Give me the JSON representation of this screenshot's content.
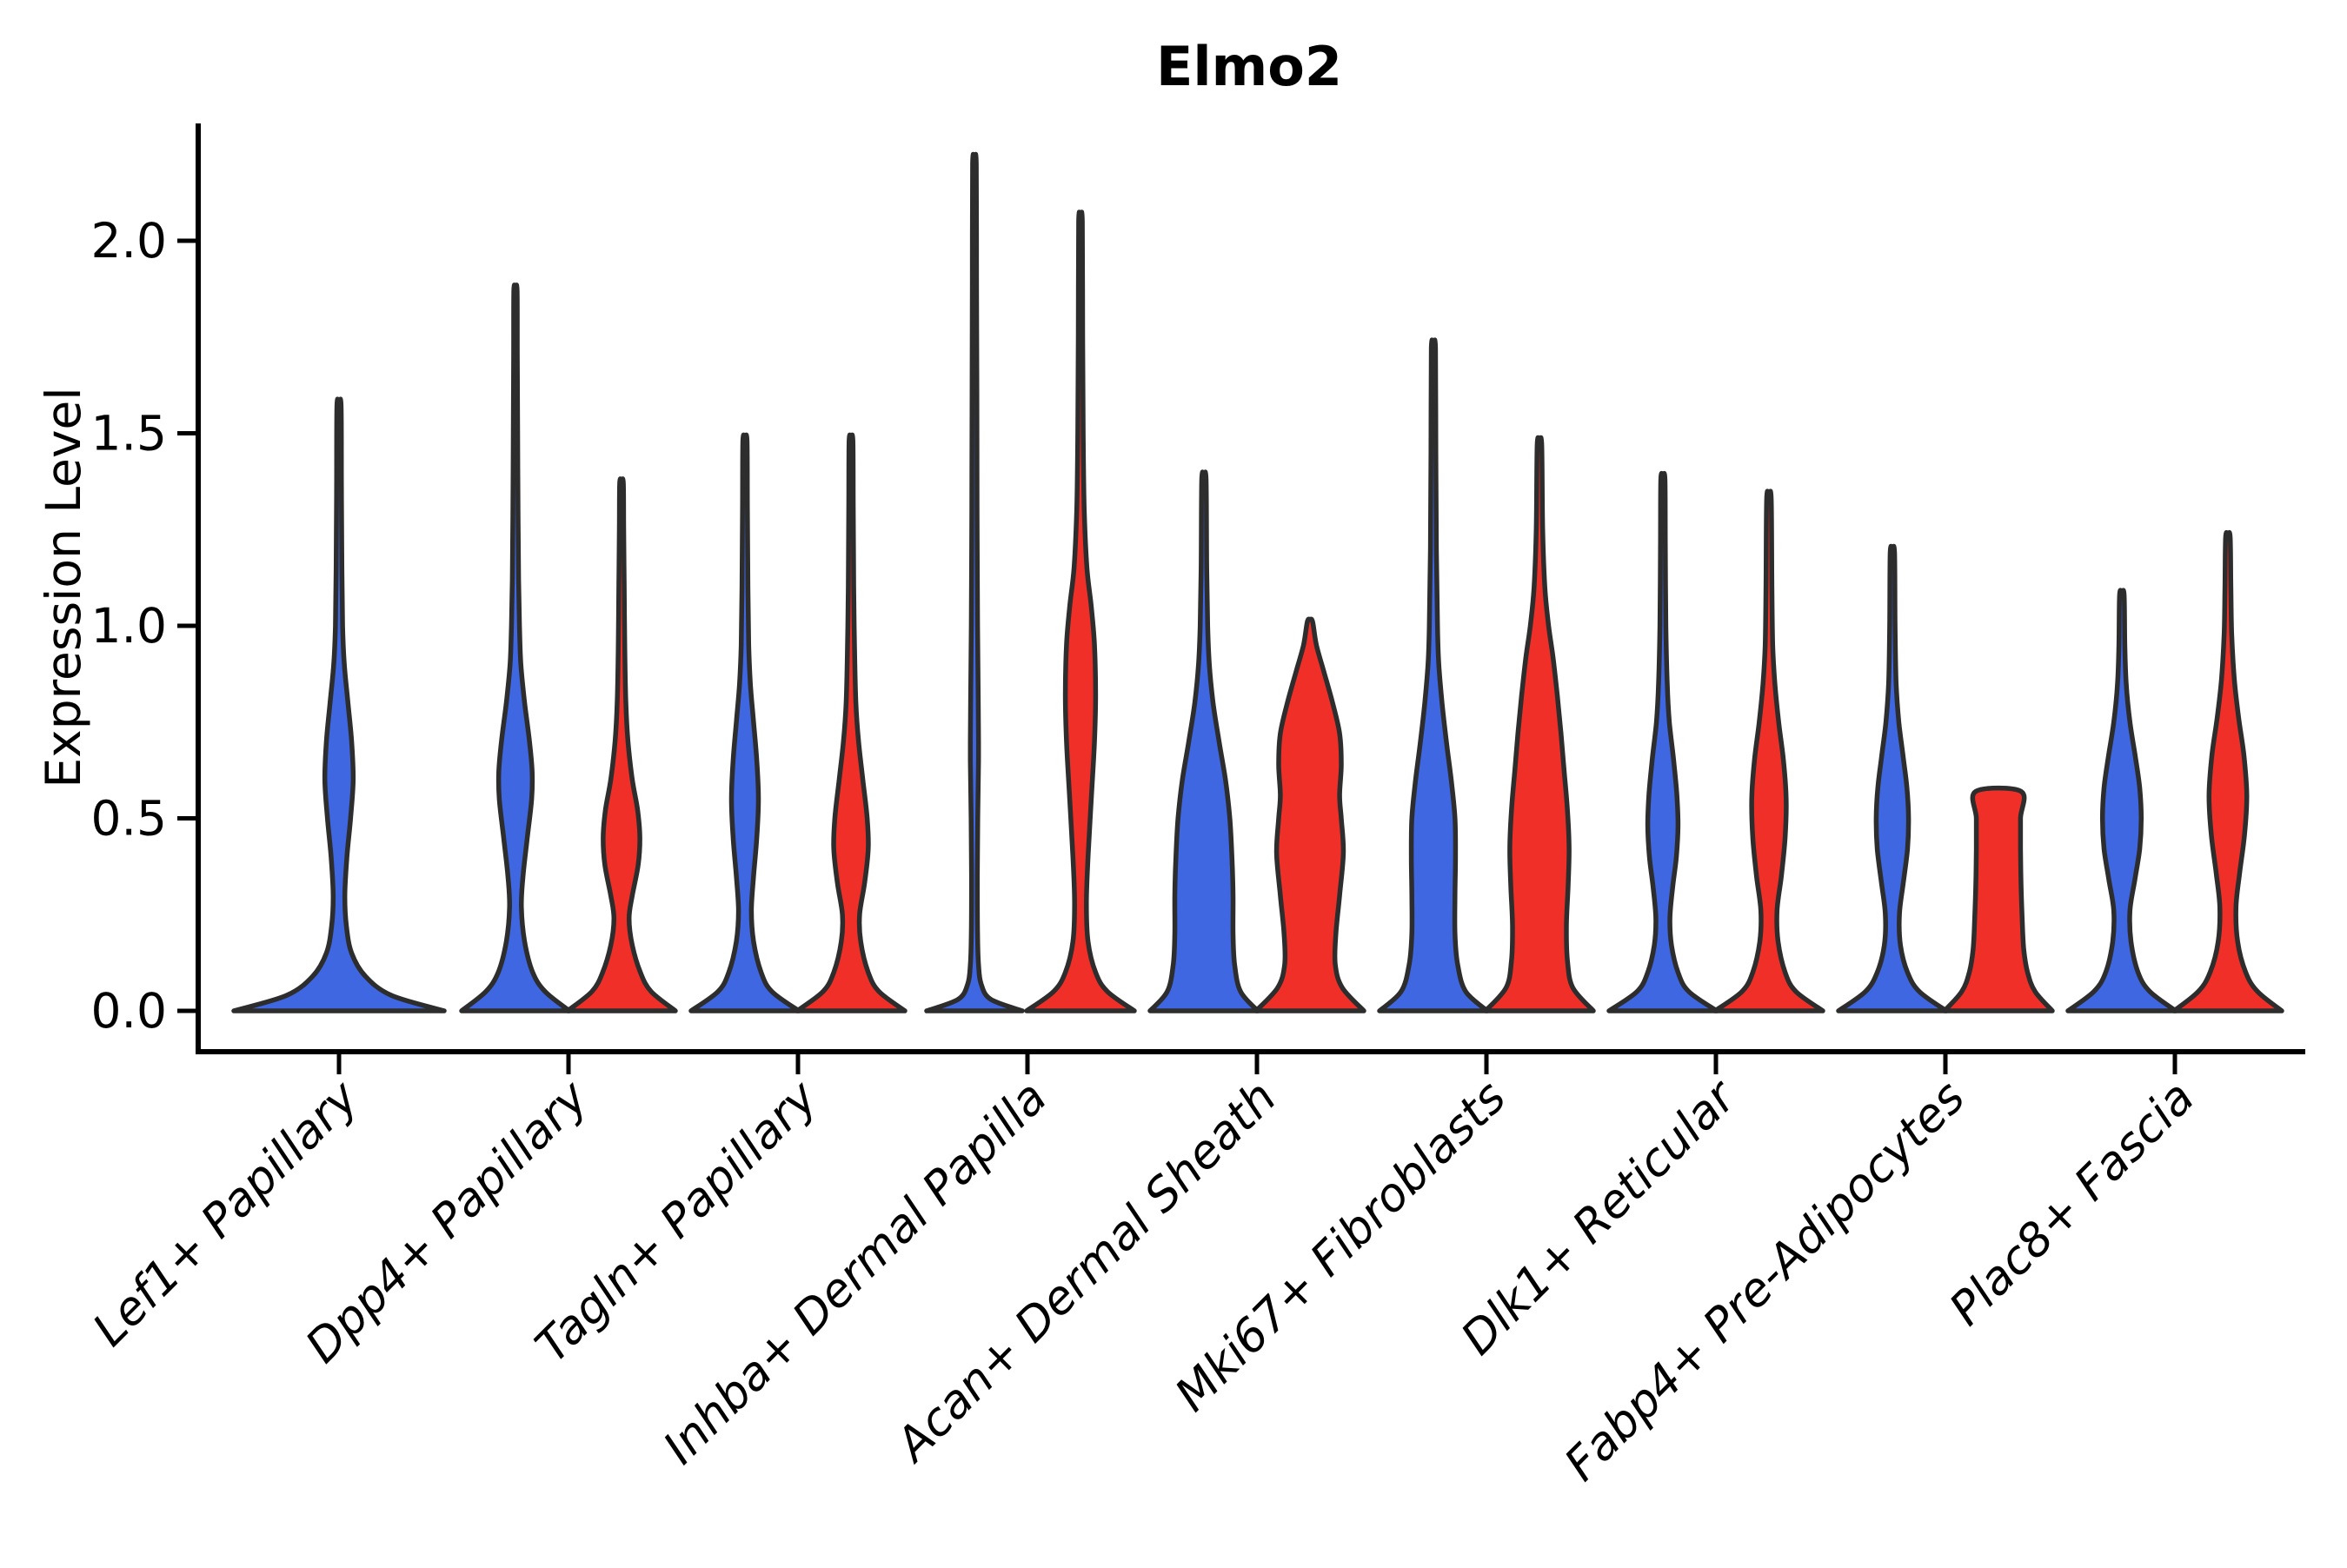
{
  "title": "Elmo2",
  "ylabel": "Expression Level",
  "chart_data": {
    "type": "violin",
    "title": "Elmo2",
    "xlabel": "",
    "ylabel": "Expression Level",
    "ylim": [
      -0.11,
      2.31
    ],
    "yticks": [
      0.0,
      0.5,
      1.0,
      1.5,
      2.0
    ],
    "ytick_labels": [
      "0.0",
      "0.5",
      "1.0",
      "1.5",
      "2.0"
    ],
    "grid": "off",
    "legend": "none",
    "categories": [
      "Lef1+ Papillary",
      "Dpp4+ Papillary",
      "Tagln+ Papillary",
      "Inhba+ Dermal Papilla",
      "Acan+ Dermal Sheath",
      "Mki67+ Fibroblasts",
      "Dlk1+ Reticular",
      "Fabp4+ Pre-Adipocytes",
      "Plac8+ Fascia"
    ],
    "series": [
      {
        "name": "blue",
        "color": "#3E67E1"
      },
      {
        "name": "red",
        "color": "#F03028"
      }
    ],
    "colors": {
      "blue_fill": "#3E67E1",
      "red_fill": "#F03028",
      "outline": "#2D2D2D",
      "axis": "#000000",
      "text": "#000000",
      "background": "#FFFFFF"
    },
    "violins": [
      {
        "category_index": 0,
        "category": "Lef1+ Papillary",
        "series": "blue",
        "max": 1.57,
        "offset": 0,
        "half_width": 121,
        "flat_top": false,
        "profile": [
          [
            0,
            1
          ],
          [
            0.04,
            0.5
          ],
          [
            0.09,
            0.25
          ],
          [
            0.15,
            0.12
          ],
          [
            0.22,
            0.07
          ],
          [
            0.3,
            0.055
          ],
          [
            0.4,
            0.075
          ],
          [
            0.5,
            0.11
          ],
          [
            0.6,
            0.135
          ],
          [
            0.7,
            0.12
          ],
          [
            0.8,
            0.085
          ],
          [
            0.9,
            0.05
          ],
          [
            1,
            0.034
          ],
          [
            1.15,
            0.027
          ],
          [
            1.35,
            0.023
          ],
          [
            1.57,
            0.02
          ]
        ]
      },
      {
        "category_index": 1,
        "category": "Dpp4+ Papillary",
        "series": "blue",
        "max": 1.87,
        "offset": -61,
        "half_width": 62,
        "flat_top": false,
        "profile": [
          [
            0,
            1
          ],
          [
            0.05,
            0.55
          ],
          [
            0.1,
            0.32
          ],
          [
            0.18,
            0.17
          ],
          [
            0.27,
            0.11
          ],
          [
            0.35,
            0.14
          ],
          [
            0.45,
            0.22
          ],
          [
            0.55,
            0.3
          ],
          [
            0.62,
            0.31
          ],
          [
            0.7,
            0.26
          ],
          [
            0.8,
            0.17
          ],
          [
            0.9,
            0.1
          ],
          [
            1,
            0.075
          ],
          [
            1.12,
            0.058
          ],
          [
            1.28,
            0.048
          ],
          [
            1.5,
            0.04
          ],
          [
            1.7,
            0.034
          ],
          [
            1.87,
            0.03
          ]
        ]
      },
      {
        "category_index": 1,
        "category": "Dpp4+ Papillary",
        "series": "red",
        "max": 1.37,
        "offset": 61,
        "half_width": 62,
        "flat_top": false,
        "profile": [
          [
            0,
            1
          ],
          [
            0.05,
            0.55
          ],
          [
            0.1,
            0.35
          ],
          [
            0.17,
            0.2
          ],
          [
            0.24,
            0.14
          ],
          [
            0.3,
            0.2
          ],
          [
            0.38,
            0.31
          ],
          [
            0.45,
            0.34
          ],
          [
            0.52,
            0.3
          ],
          [
            0.6,
            0.2
          ],
          [
            0.7,
            0.12
          ],
          [
            0.8,
            0.08
          ],
          [
            0.95,
            0.06
          ],
          [
            1.1,
            0.05
          ],
          [
            1.25,
            0.04
          ],
          [
            1.37,
            0.034
          ]
        ]
      },
      {
        "category_index": 2,
        "category": "Tagln+ Papillary",
        "series": "blue",
        "max": 1.48,
        "offset": -61,
        "half_width": 62,
        "flat_top": false,
        "profile": [
          [
            0,
            1
          ],
          [
            0.05,
            0.5
          ],
          [
            0.1,
            0.3
          ],
          [
            0.18,
            0.16
          ],
          [
            0.26,
            0.12
          ],
          [
            0.35,
            0.16
          ],
          [
            0.45,
            0.22
          ],
          [
            0.55,
            0.25
          ],
          [
            0.65,
            0.22
          ],
          [
            0.75,
            0.16
          ],
          [
            0.85,
            0.1
          ],
          [
            0.95,
            0.07
          ],
          [
            1.1,
            0.055
          ],
          [
            1.3,
            0.045
          ],
          [
            1.48,
            0.038
          ]
        ]
      },
      {
        "category_index": 2,
        "category": "Tagln+ Papillary",
        "series": "red",
        "max": 1.48,
        "offset": 61,
        "half_width": 62,
        "flat_top": false,
        "profile": [
          [
            0,
            1
          ],
          [
            0.05,
            0.52
          ],
          [
            0.1,
            0.32
          ],
          [
            0.18,
            0.18
          ],
          [
            0.25,
            0.16
          ],
          [
            0.33,
            0.25
          ],
          [
            0.42,
            0.32
          ],
          [
            0.5,
            0.3
          ],
          [
            0.6,
            0.22
          ],
          [
            0.7,
            0.14
          ],
          [
            0.8,
            0.09
          ],
          [
            0.95,
            0.065
          ],
          [
            1.1,
            0.05
          ],
          [
            1.3,
            0.042
          ],
          [
            1.48,
            0.035
          ]
        ]
      },
      {
        "category_index": 3,
        "category": "Inhba+ Dermal Papilla",
        "series": "blue",
        "max": 2.2,
        "offset": -61,
        "half_width": 55,
        "flat_top": false,
        "profile": [
          [
            0,
            1
          ],
          [
            0.03,
            0.34
          ],
          [
            0.07,
            0.14
          ],
          [
            0.12,
            0.085
          ],
          [
            0.2,
            0.065
          ],
          [
            0.35,
            0.06
          ],
          [
            0.5,
            0.07
          ],
          [
            0.65,
            0.085
          ],
          [
            0.8,
            0.08
          ],
          [
            1,
            0.065
          ],
          [
            1.3,
            0.055
          ],
          [
            1.6,
            0.05
          ],
          [
            1.9,
            0.044
          ],
          [
            2.2,
            0.038
          ]
        ]
      },
      {
        "category_index": 3,
        "category": "Inhba+ Dermal Papilla",
        "series": "red",
        "max": 2.05,
        "offset": 61,
        "half_width": 62,
        "flat_top": false,
        "profile": [
          [
            0,
            1
          ],
          [
            0.05,
            0.5
          ],
          [
            0.1,
            0.28
          ],
          [
            0.18,
            0.14
          ],
          [
            0.28,
            0.11
          ],
          [
            0.4,
            0.14
          ],
          [
            0.55,
            0.2
          ],
          [
            0.7,
            0.26
          ],
          [
            0.82,
            0.28
          ],
          [
            0.95,
            0.26
          ],
          [
            1.05,
            0.2
          ],
          [
            1.15,
            0.12
          ],
          [
            1.3,
            0.07
          ],
          [
            1.5,
            0.05
          ],
          [
            1.75,
            0.04
          ],
          [
            2.05,
            0.034
          ]
        ]
      },
      {
        "category_index": 4,
        "category": "Acan+ Dermal Sheath",
        "series": "blue",
        "max": 1.38,
        "offset": -61,
        "half_width": 62,
        "flat_top": false,
        "profile": [
          [
            0,
            1
          ],
          [
            0.05,
            0.68
          ],
          [
            0.12,
            0.57
          ],
          [
            0.2,
            0.54
          ],
          [
            0.3,
            0.54
          ],
          [
            0.4,
            0.52
          ],
          [
            0.5,
            0.48
          ],
          [
            0.6,
            0.4
          ],
          [
            0.7,
            0.28
          ],
          [
            0.8,
            0.17
          ],
          [
            0.9,
            0.1
          ],
          [
            1,
            0.07
          ],
          [
            1.15,
            0.052
          ],
          [
            1.38,
            0.04
          ]
        ]
      },
      {
        "category_index": 4,
        "category": "Acan+ Dermal Sheath",
        "series": "red",
        "max": 1.01,
        "offset": 61,
        "half_width": 62,
        "flat_top": false,
        "profile": [
          [
            0,
            1
          ],
          [
            0.06,
            0.6
          ],
          [
            0.12,
            0.47
          ],
          [
            0.2,
            0.48
          ],
          [
            0.3,
            0.55
          ],
          [
            0.41,
            0.62
          ],
          [
            0.5,
            0.58
          ],
          [
            0.56,
            0.55
          ],
          [
            0.64,
            0.58
          ],
          [
            0.72,
            0.55
          ],
          [
            0.8,
            0.42
          ],
          [
            0.88,
            0.26
          ],
          [
            0.95,
            0.12
          ],
          [
            1.01,
            0.05
          ]
        ]
      },
      {
        "category_index": 5,
        "category": "Mki67+ Fibroblasts",
        "series": "blue",
        "max": 1.72,
        "offset": -61,
        "half_width": 62,
        "flat_top": false,
        "profile": [
          [
            0,
            1
          ],
          [
            0.05,
            0.6
          ],
          [
            0.12,
            0.45
          ],
          [
            0.2,
            0.4
          ],
          [
            0.3,
            0.4
          ],
          [
            0.4,
            0.41
          ],
          [
            0.5,
            0.4
          ],
          [
            0.6,
            0.33
          ],
          [
            0.7,
            0.24
          ],
          [
            0.8,
            0.16
          ],
          [
            0.9,
            0.1
          ],
          [
            1,
            0.075
          ],
          [
            1.2,
            0.055
          ],
          [
            1.45,
            0.045
          ],
          [
            1.72,
            0.038
          ]
        ]
      },
      {
        "category_index": 5,
        "category": "Mki67+ Fibroblasts",
        "series": "red",
        "max": 1.47,
        "offset": 61,
        "half_width": 62,
        "flat_top": false,
        "profile": [
          [
            0,
            1
          ],
          [
            0.06,
            0.62
          ],
          [
            0.13,
            0.52
          ],
          [
            0.22,
            0.5
          ],
          [
            0.32,
            0.53
          ],
          [
            0.42,
            0.55
          ],
          [
            0.52,
            0.52
          ],
          [
            0.62,
            0.46
          ],
          [
            0.72,
            0.4
          ],
          [
            0.82,
            0.33
          ],
          [
            0.92,
            0.25
          ],
          [
            1,
            0.17
          ],
          [
            1.1,
            0.1
          ],
          [
            1.25,
            0.06
          ],
          [
            1.47,
            0.042
          ]
        ]
      },
      {
        "category_index": 6,
        "category": "Dlk1+ Reticular",
        "series": "blue",
        "max": 1.38,
        "offset": -61,
        "half_width": 62,
        "flat_top": false,
        "profile": [
          [
            0,
            1
          ],
          [
            0.05,
            0.48
          ],
          [
            0.1,
            0.28
          ],
          [
            0.17,
            0.16
          ],
          [
            0.24,
            0.13
          ],
          [
            0.32,
            0.18
          ],
          [
            0.4,
            0.25
          ],
          [
            0.48,
            0.28
          ],
          [
            0.56,
            0.26
          ],
          [
            0.65,
            0.2
          ],
          [
            0.75,
            0.12
          ],
          [
            0.85,
            0.08
          ],
          [
            1,
            0.055
          ],
          [
            1.2,
            0.045
          ],
          [
            1.38,
            0.038
          ]
        ]
      },
      {
        "category_index": 6,
        "category": "Dlk1+ Reticular",
        "series": "red",
        "max": 1.33,
        "offset": 61,
        "half_width": 62,
        "flat_top": false,
        "profile": [
          [
            0,
            1
          ],
          [
            0.05,
            0.5
          ],
          [
            0.1,
            0.3
          ],
          [
            0.18,
            0.17
          ],
          [
            0.26,
            0.15
          ],
          [
            0.35,
            0.23
          ],
          [
            0.45,
            0.3
          ],
          [
            0.55,
            0.32
          ],
          [
            0.65,
            0.27
          ],
          [
            0.75,
            0.18
          ],
          [
            0.85,
            0.11
          ],
          [
            0.95,
            0.07
          ],
          [
            1.1,
            0.055
          ],
          [
            1.33,
            0.042
          ]
        ]
      },
      {
        "category_index": 7,
        "category": "Fabp4+ Pre-Adipocytes",
        "series": "blue",
        "max": 1.19,
        "offset": -61,
        "half_width": 62,
        "flat_top": false,
        "profile": [
          [
            0,
            1
          ],
          [
            0.05,
            0.5
          ],
          [
            0.1,
            0.28
          ],
          [
            0.17,
            0.15
          ],
          [
            0.25,
            0.13
          ],
          [
            0.33,
            0.2
          ],
          [
            0.42,
            0.28
          ],
          [
            0.5,
            0.3
          ],
          [
            0.58,
            0.27
          ],
          [
            0.66,
            0.2
          ],
          [
            0.75,
            0.12
          ],
          [
            0.85,
            0.07
          ],
          [
            1,
            0.05
          ],
          [
            1.19,
            0.04
          ]
        ]
      },
      {
        "category_index": 7,
        "category": "Fabp4+ Pre-Adipocytes",
        "series": "red",
        "max": 0.57,
        "offset": 61,
        "half_width": 62,
        "flat_top": true,
        "profile": [
          [
            0,
            1
          ],
          [
            0.05,
            0.68
          ],
          [
            0.1,
            0.54
          ],
          [
            0.16,
            0.47
          ],
          [
            0.24,
            0.44
          ],
          [
            0.33,
            0.42
          ],
          [
            0.42,
            0.41
          ],
          [
            0.5,
            0.41
          ],
          [
            0.57,
            0.42
          ]
        ]
      },
      {
        "category_index": 8,
        "category": "Plac8+ Fascia",
        "series": "blue",
        "max": 1.08,
        "offset": -61,
        "half_width": 62,
        "flat_top": false,
        "profile": [
          [
            0,
            1
          ],
          [
            0.05,
            0.52
          ],
          [
            0.1,
            0.3
          ],
          [
            0.18,
            0.17
          ],
          [
            0.26,
            0.15
          ],
          [
            0.34,
            0.24
          ],
          [
            0.42,
            0.33
          ],
          [
            0.5,
            0.36
          ],
          [
            0.58,
            0.33
          ],
          [
            0.66,
            0.25
          ],
          [
            0.75,
            0.15
          ],
          [
            0.85,
            0.08
          ],
          [
            0.95,
            0.055
          ],
          [
            1.08,
            0.042
          ]
        ]
      },
      {
        "category_index": 8,
        "category": "Plac8+ Fascia",
        "series": "red",
        "max": 1.23,
        "offset": 61,
        "half_width": 62,
        "flat_top": false,
        "profile": [
          [
            0,
            1
          ],
          [
            0.05,
            0.55
          ],
          [
            0.1,
            0.33
          ],
          [
            0.18,
            0.18
          ],
          [
            0.27,
            0.15
          ],
          [
            0.36,
            0.22
          ],
          [
            0.46,
            0.31
          ],
          [
            0.56,
            0.35
          ],
          [
            0.66,
            0.3
          ],
          [
            0.76,
            0.2
          ],
          [
            0.86,
            0.12
          ],
          [
            0.98,
            0.07
          ],
          [
            1.1,
            0.055
          ],
          [
            1.23,
            0.042
          ]
        ]
      }
    ]
  }
}
